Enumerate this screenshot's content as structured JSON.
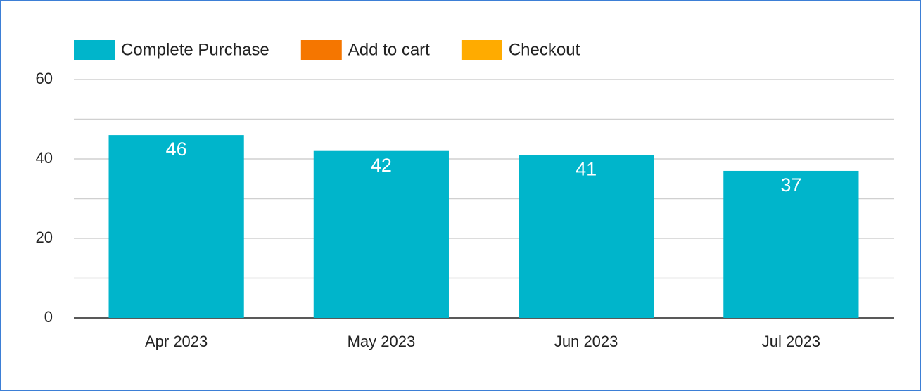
{
  "chart_data": {
    "type": "bar",
    "categories": [
      "Apr 2023",
      "May 2023",
      "Jun 2023",
      "Jul 2023"
    ],
    "series": [
      {
        "name": "Complete Purchase",
        "color": "#00b5cb",
        "values": [
          46,
          42,
          41,
          37
        ]
      },
      {
        "name": "Add to cart",
        "color": "#f57600",
        "values": [
          null,
          null,
          null,
          null
        ]
      },
      {
        "name": "Checkout",
        "color": "#ffab00",
        "values": [
          null,
          null,
          null,
          null
        ]
      }
    ],
    "ylim": [
      0,
      60
    ],
    "yticks": [
      0,
      20,
      40,
      60
    ],
    "minor_gridlines": [
      10,
      30,
      50
    ],
    "grid": true,
    "legend": "top-left",
    "value_label_color": "#ffffff"
  }
}
